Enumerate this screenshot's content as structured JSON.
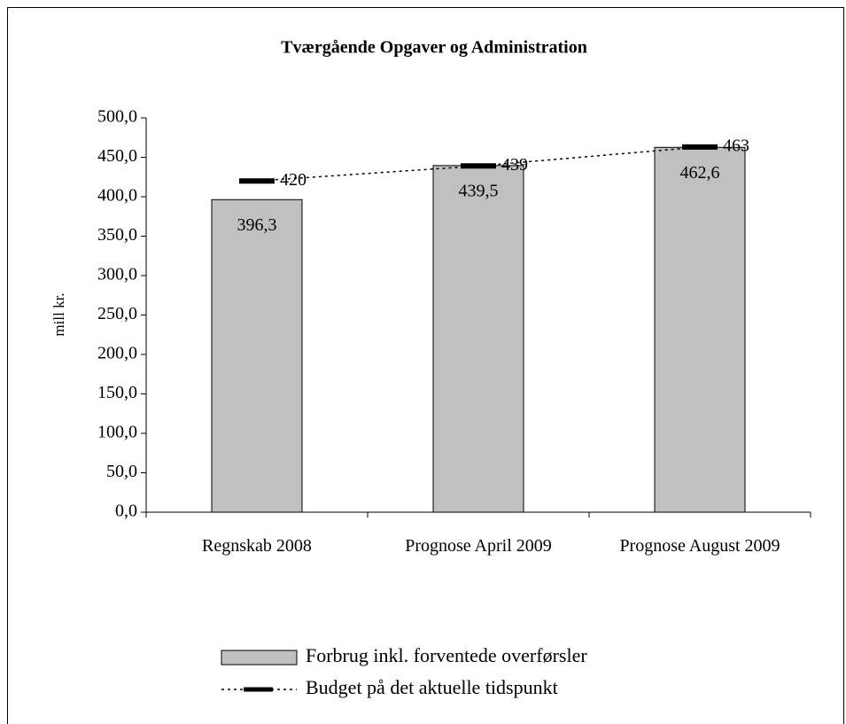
{
  "chart_data": {
    "type": "bar",
    "title": "Tværgående Opgaver og Administration",
    "ylabel": "mill kr.",
    "categories": [
      "Regnskab 2008",
      "Prognose April 2009",
      "Prognose August 2009"
    ],
    "series": [
      {
        "name": "Forbrug inkl. forventede overførsler",
        "type": "bar",
        "color": "#c0c0c0",
        "values": [
          396.3,
          439.5,
          462.6
        ],
        "value_labels": [
          "396,3",
          "439,5",
          "462,6"
        ]
      },
      {
        "name": "Budget på det aktuelle tidspunkt",
        "type": "line",
        "color": "#000000",
        "values": [
          420,
          439,
          463
        ]
      }
    ],
    "ylim": [
      0,
      500
    ],
    "yticks": [
      {
        "value": 0,
        "label": "0,0"
      },
      {
        "value": 50,
        "label": "50,0"
      },
      {
        "value": 100,
        "label": "100,0"
      },
      {
        "value": 150,
        "label": "150,0"
      },
      {
        "value": 200,
        "label": "200,0"
      },
      {
        "value": 250,
        "label": "250,0"
      },
      {
        "value": 300,
        "label": "300,0"
      },
      {
        "value": 350,
        "label": "350,0"
      },
      {
        "value": 400,
        "label": "400,0"
      },
      {
        "value": 450,
        "label": "450,0"
      },
      {
        "value": 500,
        "label": "500,0"
      }
    ],
    "legend": "bottom"
  }
}
